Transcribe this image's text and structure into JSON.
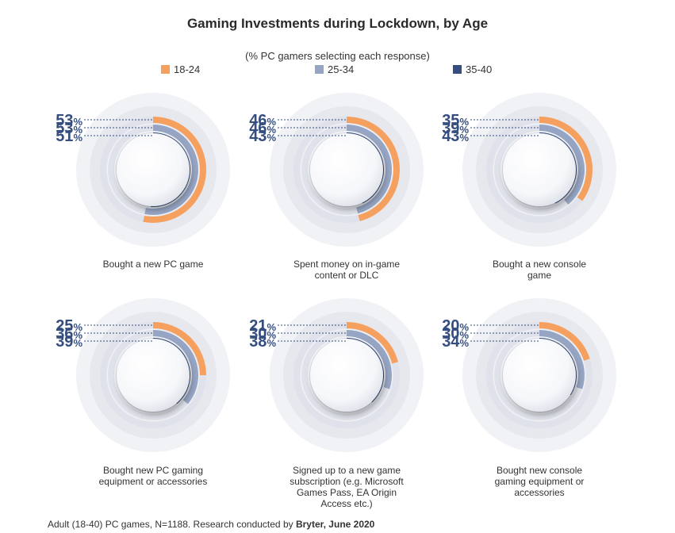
{
  "title": "Gaming Investments during Lockdown, by Age",
  "subtitle": "(% PC gamers selecting each response)",
  "legend": [
    {
      "label": "18-24",
      "color": "#f5a05e"
    },
    {
      "label": "25-34",
      "color": "#96a5c4"
    },
    {
      "label": "35-40",
      "color": "#354e7f"
    }
  ],
  "footer": {
    "text": "Adult (18-40) PC games, N=1188. Research conducted by ",
    "bold": "Bryter, June 2020"
  },
  "chart_data": {
    "type": "radial-bar",
    "series": [
      {
        "name": "18-24",
        "values": [
          53,
          46,
          35,
          25,
          21,
          20
        ]
      },
      {
        "name": "25-34",
        "values": [
          53,
          46,
          39,
          36,
          30,
          30
        ]
      },
      {
        "name": "35-40",
        "values": [
          51,
          43,
          43,
          39,
          38,
          34
        ]
      }
    ],
    "categories": [
      "Bought a new PC game",
      "Spent money on in-game content or DLC",
      "Bought a new console game",
      "Bought new PC gaming equipment or accessories",
      "Signed up to a new game subscription (e.g. Microsoft Games Pass, EA Origin Access etc.)",
      "Bought new console gaming equipment or accessories"
    ],
    "value_labels": [
      [
        "53",
        "53",
        "51"
      ],
      [
        "46",
        "46",
        "43"
      ],
      [
        "35",
        "39",
        "43"
      ],
      [
        "25",
        "36",
        "39"
      ],
      [
        "21",
        "30",
        "38"
      ],
      [
        "20",
        "30",
        "34"
      ]
    ],
    "percent_sign": "%",
    "scale_max": 100,
    "caption_lines": [
      [
        "Bought a new PC game"
      ],
      [
        "Spent money on in-game",
        "content or DLC"
      ],
      [
        "Bought a new console",
        "game"
      ],
      [
        "Bought new PC gaming",
        "equipment or accessories"
      ],
      [
        "Signed up to a new game",
        "subscription (e.g. Microsoft",
        "Games Pass, EA Origin",
        "Access etc.)"
      ],
      [
        "Bought new console",
        "gaming equipment or",
        "accessories"
      ]
    ]
  }
}
